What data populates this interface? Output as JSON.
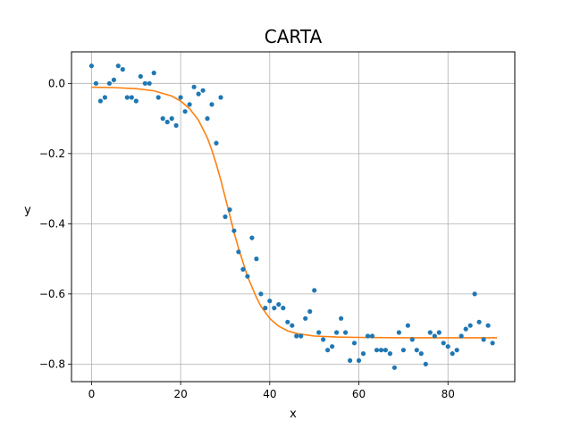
{
  "chart_data": {
    "type": "scatter",
    "title": "CARTA",
    "xlabel": "x",
    "ylabel": "y",
    "xlim": [
      -4.5,
      95
    ],
    "ylim": [
      -0.85,
      0.09
    ],
    "grid": true,
    "x_ticks": [
      0,
      20,
      40,
      60,
      80
    ],
    "x_tick_labels": [
      "0",
      "20",
      "40",
      "60",
      "80"
    ],
    "y_ticks": [
      0.0,
      -0.2,
      -0.4,
      -0.6,
      -0.8
    ],
    "y_tick_labels": [
      "0.0",
      "−0.2",
      "−0.4",
      "−0.6",
      "−0.8"
    ],
    "series": [
      {
        "type": "scatter",
        "color": "#1f77b4",
        "points": [
          [
            0,
            0.05
          ],
          [
            1,
            0.0
          ],
          [
            2,
            -0.05
          ],
          [
            3,
            -0.04
          ],
          [
            4,
            0.0
          ],
          [
            5,
            0.01
          ],
          [
            6,
            0.05
          ],
          [
            7,
            0.04
          ],
          [
            8,
            -0.04
          ],
          [
            9,
            -0.04
          ],
          [
            10,
            -0.05
          ],
          [
            11,
            0.02
          ],
          [
            12,
            0.0
          ],
          [
            13,
            0.0
          ],
          [
            14,
            0.03
          ],
          [
            15,
            -0.04
          ],
          [
            16,
            -0.1
          ],
          [
            17,
            -0.11
          ],
          [
            18,
            -0.1
          ],
          [
            19,
            -0.12
          ],
          [
            20,
            -0.04
          ],
          [
            21,
            -0.08
          ],
          [
            22,
            -0.06
          ],
          [
            23,
            -0.01
          ],
          [
            24,
            -0.03
          ],
          [
            25,
            -0.02
          ],
          [
            26,
            -0.1
          ],
          [
            27,
            -0.06
          ],
          [
            28,
            -0.17
          ],
          [
            29,
            -0.04
          ],
          [
            30,
            -0.38
          ],
          [
            31,
            -0.36
          ],
          [
            32,
            -0.42
          ],
          [
            33,
            -0.48
          ],
          [
            34,
            -0.53
          ],
          [
            35,
            -0.55
          ],
          [
            36,
            -0.44
          ],
          [
            37,
            -0.5
          ],
          [
            38,
            -0.6
          ],
          [
            39,
            -0.64
          ],
          [
            40,
            -0.62
          ],
          [
            41,
            -0.64
          ],
          [
            42,
            -0.63
          ],
          [
            43,
            -0.64
          ],
          [
            44,
            -0.68
          ],
          [
            45,
            -0.69
          ],
          [
            46,
            -0.72
          ],
          [
            47,
            -0.72
          ],
          [
            48,
            -0.67
          ],
          [
            49,
            -0.65
          ],
          [
            50,
            -0.59
          ],
          [
            51,
            -0.71
          ],
          [
            52,
            -0.73
          ],
          [
            53,
            -0.76
          ],
          [
            54,
            -0.75
          ],
          [
            55,
            -0.71
          ],
          [
            56,
            -0.67
          ],
          [
            57,
            -0.71
          ],
          [
            58,
            -0.79
          ],
          [
            59,
            -0.74
          ],
          [
            60,
            -0.79
          ],
          [
            61,
            -0.77
          ],
          [
            62,
            -0.72
          ],
          [
            63,
            -0.72
          ],
          [
            64,
            -0.76
          ],
          [
            65,
            -0.76
          ],
          [
            66,
            -0.76
          ],
          [
            67,
            -0.77
          ],
          [
            68,
            -0.81
          ],
          [
            69,
            -0.71
          ],
          [
            70,
            -0.76
          ],
          [
            71,
            -0.69
          ],
          [
            72,
            -0.73
          ],
          [
            73,
            -0.76
          ],
          [
            74,
            -0.77
          ],
          [
            75,
            -0.8
          ],
          [
            76,
            -0.71
          ],
          [
            77,
            -0.72
          ],
          [
            78,
            -0.71
          ],
          [
            79,
            -0.74
          ],
          [
            80,
            -0.75
          ],
          [
            81,
            -0.77
          ],
          [
            82,
            -0.76
          ],
          [
            83,
            -0.72
          ],
          [
            84,
            -0.7
          ],
          [
            85,
            -0.69
          ],
          [
            86,
            -0.6
          ],
          [
            87,
            -0.68
          ],
          [
            88,
            -0.73
          ],
          [
            89,
            -0.69
          ],
          [
            90,
            -0.74
          ]
        ]
      },
      {
        "type": "line",
        "color": "#ff7f0e",
        "points": [
          [
            0,
            -0.011
          ],
          [
            5,
            -0.012
          ],
          [
            10,
            -0.015
          ],
          [
            14,
            -0.021
          ],
          [
            18,
            -0.036
          ],
          [
            20,
            -0.05
          ],
          [
            22,
            -0.072
          ],
          [
            24,
            -0.105
          ],
          [
            26,
            -0.155
          ],
          [
            27,
            -0.19
          ],
          [
            28,
            -0.23
          ],
          [
            29,
            -0.275
          ],
          [
            30,
            -0.325
          ],
          [
            31,
            -0.375
          ],
          [
            32,
            -0.425
          ],
          [
            33,
            -0.47
          ],
          [
            34,
            -0.51
          ],
          [
            35,
            -0.55
          ],
          [
            36,
            -0.58
          ],
          [
            37,
            -0.61
          ],
          [
            38,
            -0.635
          ],
          [
            40,
            -0.67
          ],
          [
            42,
            -0.692
          ],
          [
            44,
            -0.705
          ],
          [
            46,
            -0.713
          ],
          [
            50,
            -0.72
          ],
          [
            55,
            -0.723
          ],
          [
            60,
            -0.724
          ],
          [
            70,
            -0.725
          ],
          [
            80,
            -0.725
          ],
          [
            91,
            -0.725
          ]
        ]
      }
    ]
  }
}
